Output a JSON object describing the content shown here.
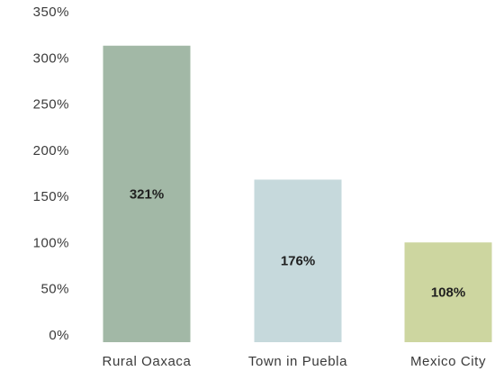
{
  "chart_data": {
    "type": "bar",
    "title": "",
    "xlabel": "",
    "ylabel": "",
    "categories": [
      "Rural Oaxaca",
      "Town in Puebla",
      "Mexico City"
    ],
    "values": [
      321,
      176,
      108
    ],
    "data_labels": [
      "321%",
      "176%",
      "108%"
    ],
    "colors": [
      "#a2b8a6",
      "#c6d9dc",
      "#cdd6a0"
    ],
    "ylim": [
      0,
      350
    ],
    "y_ticks": [
      0,
      50,
      100,
      150,
      200,
      250,
      300,
      350
    ],
    "y_tick_labels": [
      "0%",
      "50%",
      "100%",
      "150%",
      "200%",
      "250%",
      "300%",
      "350%"
    ],
    "grid": false,
    "legend": "none"
  }
}
